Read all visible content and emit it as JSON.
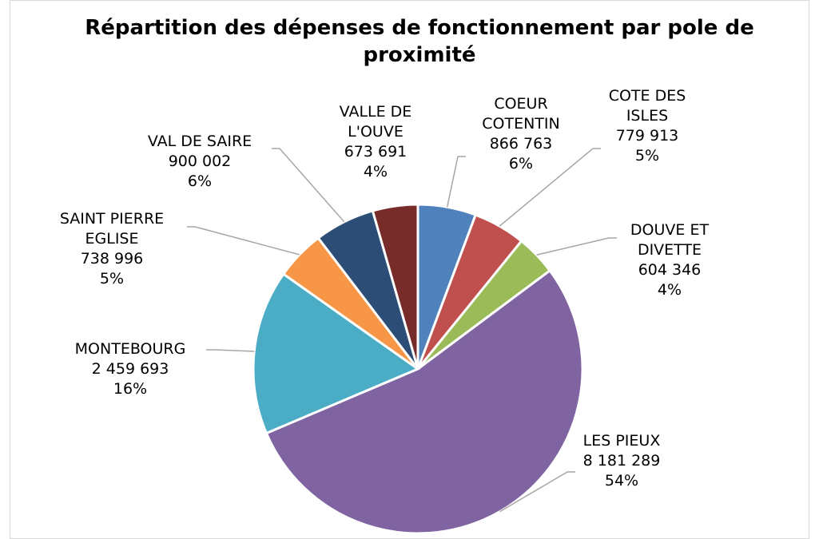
{
  "chart_data": {
    "type": "pie",
    "title": "Répartition des dépenses de fonctionnement par pole de proximité",
    "categories": [
      "COEUR COTENTIN",
      "COTE DES ISLES",
      "DOUVE ET DIVETTE",
      "LES PIEUX",
      "MONTEBOURG",
      "SAINT PIERRE EGLISE",
      "VAL DE SAIRE",
      "VALLE DE L'OUVE"
    ],
    "values": [
      866763,
      779913,
      604346,
      8181289,
      2459693,
      738996,
      900002,
      673691
    ],
    "value_labels": [
      "866 763",
      "779 913",
      "604 346",
      "8 181 289",
      "2 459 693",
      "738 996",
      "900 002",
      "673 691"
    ],
    "percent_labels": [
      "6%",
      "5%",
      "4%",
      "54%",
      "16%",
      "5%",
      "6%",
      "4%"
    ],
    "colors": [
      "#4f81bd",
      "#c0504d",
      "#9bbb59",
      "#8064a2",
      "#4bacc6",
      "#f79646",
      "#2c4d75",
      "#772c2a"
    ]
  }
}
